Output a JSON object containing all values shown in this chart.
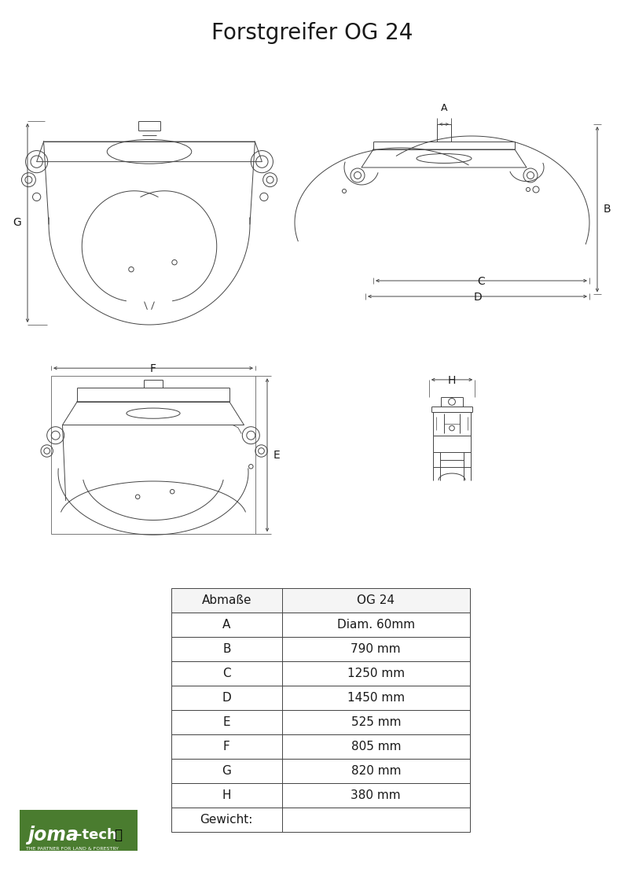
{
  "title": "Forstgreifer OG 24",
  "title_fontsize": 20,
  "title_fontweight": "normal",
  "background_color": "#ffffff",
  "table_header": [
    "Abmaße",
    "OG 24"
  ],
  "table_rows": [
    [
      "A",
      "Diam. 60mm"
    ],
    [
      "B",
      "790 mm"
    ],
    [
      "C",
      "1250 mm"
    ],
    [
      "D",
      "1450 mm"
    ],
    [
      "E",
      "525 mm"
    ],
    [
      "F",
      "805 mm"
    ],
    [
      "G",
      "820 mm"
    ],
    [
      "H",
      "380 mm"
    ],
    [
      "Gewicht:",
      ""
    ]
  ],
  "line_color": "#444444",
  "text_color": "#1a1a1a",
  "page_width": 7.94,
  "page_height": 11.23,
  "logo_green": "#4a7c2f",
  "logo_text_color": "#ffffff"
}
